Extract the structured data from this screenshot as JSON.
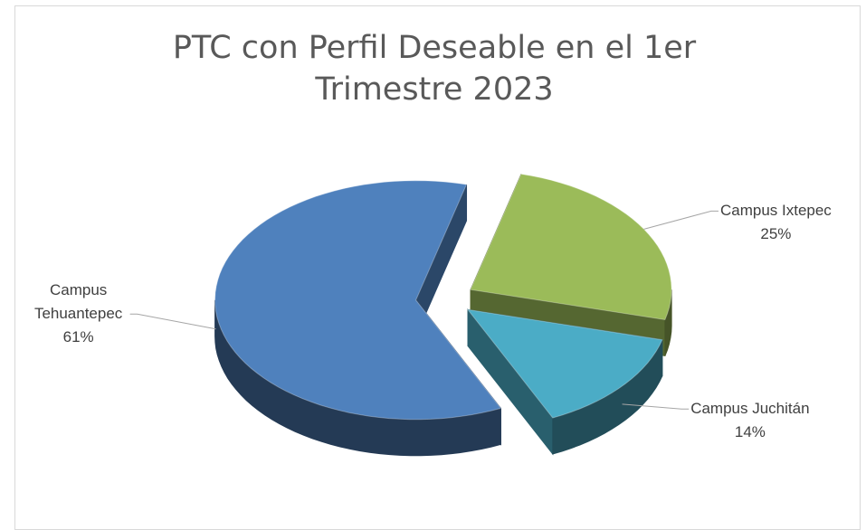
{
  "chart_data": {
    "type": "pie3d",
    "title": "PTC con Perfil Deseable en el 1er Trimestre 2023",
    "categories": [
      "Campus Tehuantepec",
      "Campus Ixtepec",
      "Campus Juchitán"
    ],
    "values": [
      61,
      25,
      14
    ],
    "value_labels": [
      "61%",
      "25%",
      "14%"
    ],
    "colors": [
      "#4f81bd",
      "#9bbb59",
      "#4bacc6"
    ]
  }
}
